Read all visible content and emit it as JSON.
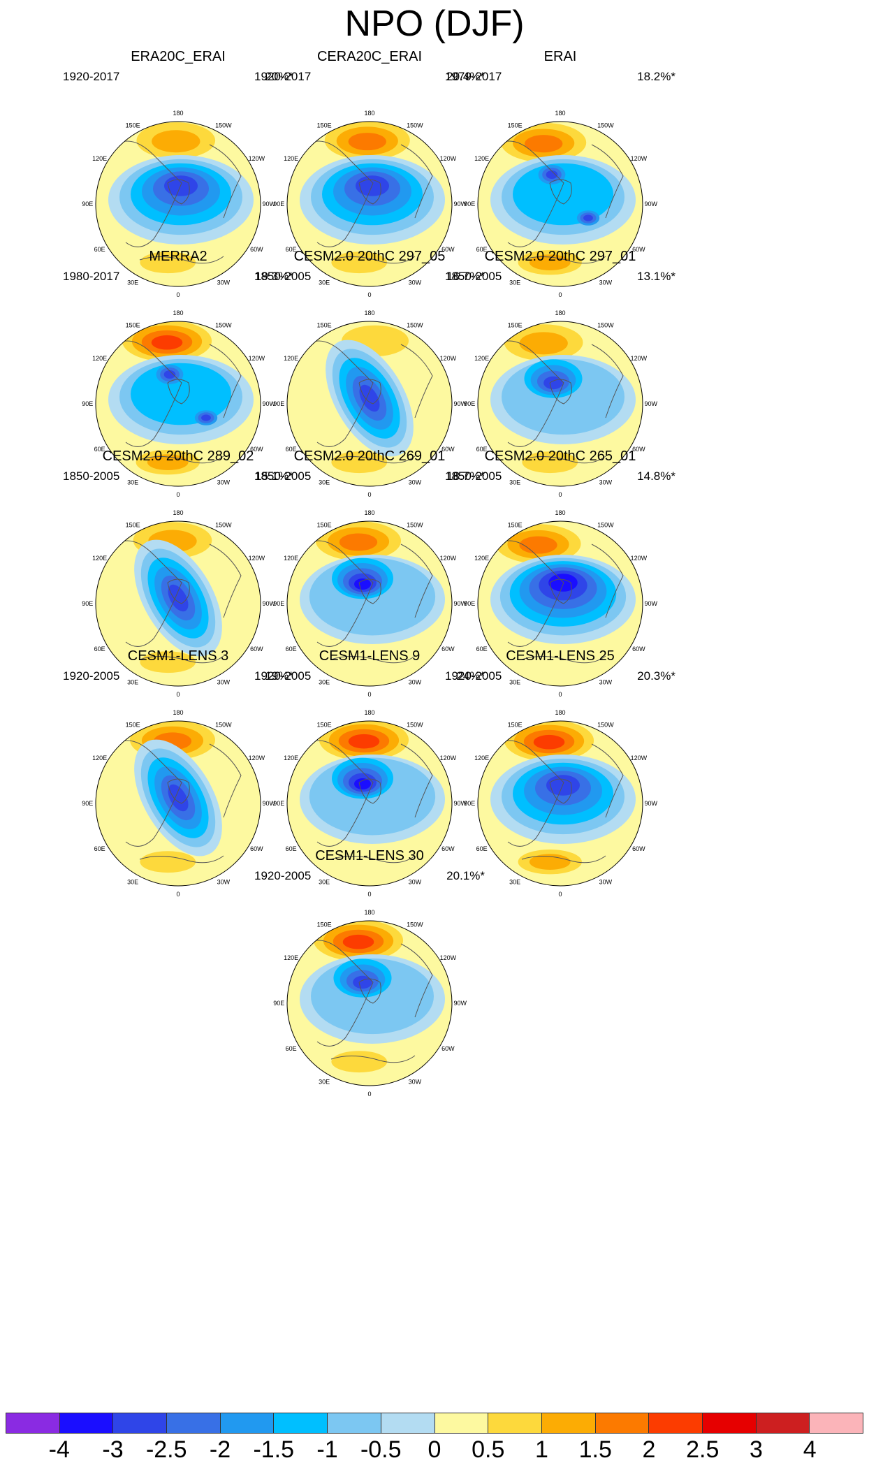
{
  "title": "NPO (DJF)",
  "longitude_labels": [
    "180",
    "150E",
    "120E",
    "90E",
    "60E",
    "30E",
    "0",
    "30W",
    "60W",
    "90W",
    "120W",
    "150W"
  ],
  "panels": [
    {
      "name": "ERA20C_ERAI",
      "period": "1920-2017",
      "percent": "20%*",
      "pos_max": 1.5,
      "pos_lon": 178,
      "neg_max": -3,
      "neg_style": "broad",
      "europe_max": 1.0
    },
    {
      "name": "CERA20C_ERAI",
      "period": "1920-2017",
      "percent": "20.4%*",
      "pos_max": 2,
      "pos_lon": 178,
      "neg_max": -3,
      "neg_style": "broad",
      "europe_max": 1.0
    },
    {
      "name": "ERAI",
      "period": "1979-2017",
      "percent": "18.2%*",
      "pos_max": 2,
      "pos_lon": 165,
      "neg_max": -3,
      "neg_style": "split",
      "europe_max": 1.5
    },
    {
      "name": "MERRA2",
      "period": "1980-2017",
      "percent": "19.3%*",
      "pos_max": 2.5,
      "pos_lon": 170,
      "neg_max": -3,
      "neg_style": "split",
      "europe_max": 1.5
    },
    {
      "name": "CESM2.0 20thC 297_05",
      "period": "1850-2005",
      "percent": "16.7%*",
      "pos_max": 1,
      "pos_lon": 185,
      "neg_max": -3,
      "neg_style": "diagonal",
      "europe_max": 1.0
    },
    {
      "name": "CESM2.0 20thC 297_01",
      "period": "1850-2005",
      "percent": "13.1%*",
      "pos_max": 1.5,
      "pos_lon": 165,
      "neg_max": -3,
      "neg_style": "core",
      "europe_max": 1.0
    },
    {
      "name": "CESM2.0 20thC 289_02",
      "period": "1850-2005",
      "percent": "15.1%*",
      "pos_max": 1.5,
      "pos_lon": 175,
      "neg_max": -3,
      "neg_style": "diagonal",
      "europe_max": 1.0
    },
    {
      "name": "CESM2.0 20thC 269_01",
      "period": "1850-2005",
      "percent": "18.7%*",
      "pos_max": 2,
      "pos_lon": 170,
      "neg_max": -3.5,
      "neg_style": "core",
      "europe_max": 0.5
    },
    {
      "name": "CESM2.0 20thC 265_01",
      "period": "1850-2005",
      "percent": "14.8%*",
      "pos_max": 2,
      "pos_lon": 160,
      "neg_max": -3.5,
      "neg_style": "broad",
      "europe_max": 0.5
    },
    {
      "name": "CESM1-LENS 3",
      "period": "1920-2005",
      "percent": "19%*",
      "pos_max": 2,
      "pos_lon": 175,
      "neg_max": -3,
      "neg_style": "diagonal",
      "europe_max": 1.0
    },
    {
      "name": "CESM1-LENS 9",
      "period": "1920-2005",
      "percent": "24%*",
      "pos_max": 2.5,
      "pos_lon": 175,
      "neg_max": -3.5,
      "neg_style": "core",
      "europe_max": 0.5
    },
    {
      "name": "CESM1-LENS 25",
      "period": "1920-2005",
      "percent": "20.3%*",
      "pos_max": 2.5,
      "pos_lon": 170,
      "neg_max": -3,
      "neg_style": "broad",
      "europe_max": 1.5
    },
    {
      "name": "CESM1-LENS 30",
      "period": "1920-2005",
      "percent": "20.1%*",
      "pos_max": 2.5,
      "pos_lon": 170,
      "neg_max": -3,
      "neg_style": "core",
      "europe_max": 1.0
    }
  ],
  "colorbar": {
    "colors": [
      "#8a2be2",
      "#1a0eff",
      "#2f45e8",
      "#3870e6",
      "#2199f0",
      "#00bfff",
      "#7cc7f2",
      "#b3dcf2",
      "#fdf9a0",
      "#fdd93c",
      "#fcac04",
      "#fc7a00",
      "#fc3c00",
      "#e60000",
      "#cd1f20",
      "#fbb4b9"
    ],
    "labels": [
      "-4",
      "-3",
      "-2.5",
      "-2",
      "-1.5",
      "-1",
      "-0.5",
      "0",
      "0.5",
      "1",
      "1.5",
      "2",
      "2.5",
      "3",
      "4"
    ]
  }
}
